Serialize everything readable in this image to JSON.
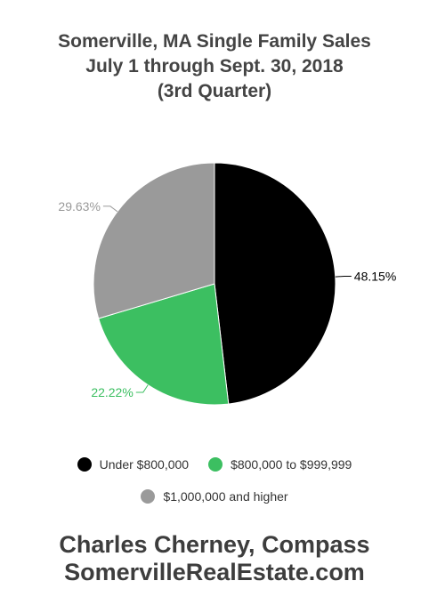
{
  "chart_data": {
    "type": "pie",
    "title": [
      "Somerville, MA Single Family Sales",
      "July 1 through Sept. 30, 2018",
      "(3rd Quarter)"
    ],
    "categories": [
      "Under $800,000",
      "$800,000 to $999,999",
      "$1,000,000 and higher"
    ],
    "values": [
      48.15,
      22.22,
      29.63
    ],
    "labels": [
      "48.15%",
      "22.22%",
      "29.63%"
    ],
    "colors": [
      "#000000",
      "#3cbf61",
      "#9a9a9a"
    ],
    "label_colors": [
      "#000000",
      "#3cbf61",
      "#9a9a9a"
    ],
    "legend_position": "bottom"
  },
  "footer": {
    "line1": "Charles Cherney, Compass",
    "line2": "SomervilleRealEstate.com"
  }
}
